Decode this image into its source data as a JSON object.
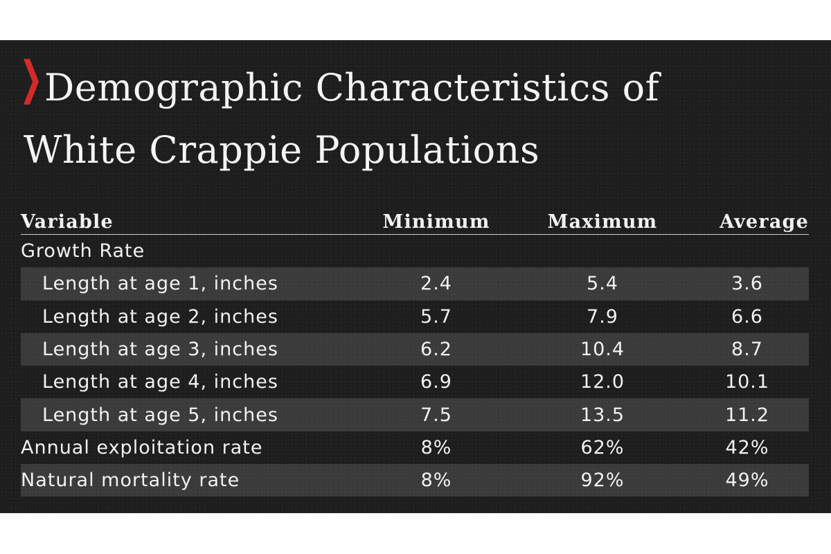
{
  "title": {
    "line1": "Demographic Characteristics of",
    "line2": "White Crappie Populations"
  },
  "colors": {
    "accent": "#d42a2a",
    "background": "#1e1e1e",
    "text": "#f2f2f2"
  },
  "table": {
    "headers": {
      "variable": "Variable",
      "minimum": "Minimum",
      "maximum": "Maximum",
      "average": "Average"
    },
    "rows": [
      {
        "label": "Growth Rate",
        "min": "",
        "max": "",
        "avg": ""
      },
      {
        "label": "Length at age 1, inches",
        "min": "2.4",
        "max": "5.4",
        "avg": "3.6"
      },
      {
        "label": "Length at age 2, inches",
        "min": "5.7",
        "max": "7.9",
        "avg": "6.6"
      },
      {
        "label": "Length at age 3, inches",
        "min": "6.2",
        "max": "10.4",
        "avg": "8.7"
      },
      {
        "label": "Length at age 4, inches",
        "min": "6.9",
        "max": "12.0",
        "avg": "10.1"
      },
      {
        "label": "Length at age 5, inches",
        "min": "7.5",
        "max": "13.5",
        "avg": "11.2"
      },
      {
        "label": "Annual exploitation rate",
        "min": "8%",
        "max": "62%",
        "avg": "42%"
      },
      {
        "label": "Natural mortality rate",
        "min": "8%",
        "max": "92%",
        "avg": "49%"
      }
    ]
  }
}
